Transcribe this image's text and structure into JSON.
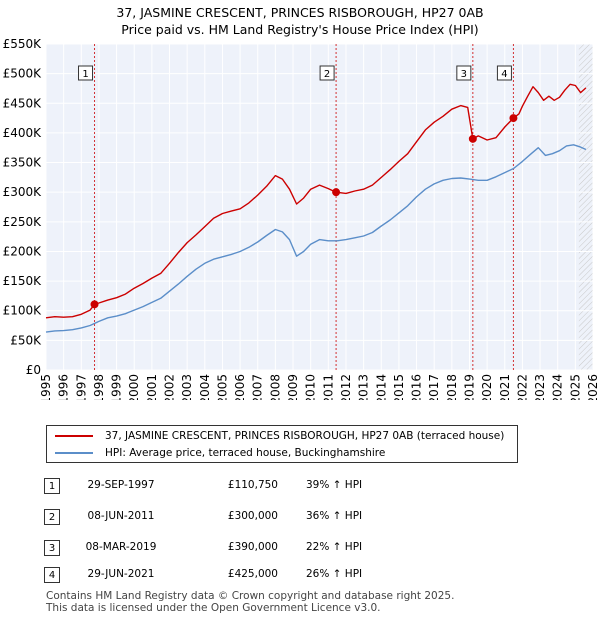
{
  "title": {
    "line1": "37, JASMINE CRESCENT, PRINCES RISBOROUGH, HP27 0AB",
    "line2": "Price paid vs. HM Land Registry's House Price Index (HPI)"
  },
  "chart_data": {
    "type": "line",
    "title": "37, JASMINE CRESCENT, PRINCES RISBOROUGH, HP27 0AB — Price paid vs. HM Land Registry's House Price Index (HPI)",
    "xlabel": "",
    "ylabel": "",
    "xlim": [
      1995,
      2026
    ],
    "ylim": [
      0,
      550000
    ],
    "x_ticks": [
      "1995",
      "1996",
      "1997",
      "1998",
      "1999",
      "2000",
      "2001",
      "2002",
      "2003",
      "2004",
      "2005",
      "2006",
      "2007",
      "2008",
      "2009",
      "2010",
      "2011",
      "2012",
      "2013",
      "2014",
      "2015",
      "2016",
      "2017",
      "2018",
      "2019",
      "2020",
      "2021",
      "2022",
      "2023",
      "2024",
      "2025",
      "2026"
    ],
    "y_ticks": [
      {
        "value": 0,
        "label": "£0"
      },
      {
        "value": 50000,
        "label": "£50K"
      },
      {
        "value": 100000,
        "label": "£100K"
      },
      {
        "value": 150000,
        "label": "£150K"
      },
      {
        "value": 200000,
        "label": "£200K"
      },
      {
        "value": 250000,
        "label": "£250K"
      },
      {
        "value": 300000,
        "label": "£300K"
      },
      {
        "value": 350000,
        "label": "£350K"
      },
      {
        "value": 400000,
        "label": "£400K"
      },
      {
        "value": 450000,
        "label": "£450K"
      },
      {
        "value": 500000,
        "label": "£500K"
      },
      {
        "value": 550000,
        "label": "£550K"
      }
    ],
    "grid": true,
    "series": [
      {
        "name": "37, JASMINE CRESCENT, PRINCES RISBOROUGH, HP27 0AB (terraced house)",
        "color": "#cc0000",
        "points": [
          [
            1995.0,
            88000
          ],
          [
            1995.5,
            90000
          ],
          [
            1996.0,
            89000
          ],
          [
            1996.5,
            90000
          ],
          [
            1997.0,
            94000
          ],
          [
            1997.5,
            101000
          ],
          [
            1997.75,
            110750
          ],
          [
            1998.0,
            113000
          ],
          [
            1998.5,
            118000
          ],
          [
            1999.0,
            122000
          ],
          [
            1999.5,
            128000
          ],
          [
            2000.0,
            138000
          ],
          [
            2000.5,
            146000
          ],
          [
            2001.0,
            155000
          ],
          [
            2001.5,
            163000
          ],
          [
            2002.0,
            180000
          ],
          [
            2002.5,
            198000
          ],
          [
            2003.0,
            215000
          ],
          [
            2003.5,
            228000
          ],
          [
            2004.0,
            242000
          ],
          [
            2004.5,
            256000
          ],
          [
            2005.0,
            264000
          ],
          [
            2005.5,
            268000
          ],
          [
            2006.0,
            272000
          ],
          [
            2006.5,
            282000
          ],
          [
            2007.0,
            295000
          ],
          [
            2007.5,
            310000
          ],
          [
            2008.0,
            328000
          ],
          [
            2008.4,
            322000
          ],
          [
            2008.8,
            305000
          ],
          [
            2009.2,
            280000
          ],
          [
            2009.6,
            290000
          ],
          [
            2010.0,
            305000
          ],
          [
            2010.5,
            312000
          ],
          [
            2011.0,
            306000
          ],
          [
            2011.44,
            300000
          ],
          [
            2012.0,
            298000
          ],
          [
            2012.5,
            302000
          ],
          [
            2013.0,
            305000
          ],
          [
            2013.5,
            312000
          ],
          [
            2014.0,
            325000
          ],
          [
            2014.5,
            338000
          ],
          [
            2015.0,
            352000
          ],
          [
            2015.5,
            365000
          ],
          [
            2016.0,
            385000
          ],
          [
            2016.5,
            405000
          ],
          [
            2017.0,
            418000
          ],
          [
            2017.5,
            428000
          ],
          [
            2018.0,
            440000
          ],
          [
            2018.5,
            446000
          ],
          [
            2018.9,
            443000
          ],
          [
            2019.19,
            390000
          ],
          [
            2019.5,
            395000
          ],
          [
            2020.0,
            388000
          ],
          [
            2020.5,
            392000
          ],
          [
            2021.0,
            410000
          ],
          [
            2021.49,
            425000
          ],
          [
            2021.8,
            432000
          ],
          [
            2022.0,
            445000
          ],
          [
            2022.3,
            462000
          ],
          [
            2022.6,
            478000
          ],
          [
            2022.9,
            468000
          ],
          [
            2023.2,
            455000
          ],
          [
            2023.5,
            462000
          ],
          [
            2023.8,
            455000
          ],
          [
            2024.1,
            460000
          ],
          [
            2024.4,
            472000
          ],
          [
            2024.7,
            482000
          ],
          [
            2025.0,
            480000
          ],
          [
            2025.3,
            468000
          ],
          [
            2025.6,
            476000
          ]
        ]
      },
      {
        "name": "HPI: Average price, terraced house, Buckinghamshire",
        "color": "#5b8ec9",
        "points": [
          [
            1995.0,
            64000
          ],
          [
            1995.5,
            66000
          ],
          [
            1996.0,
            66500
          ],
          [
            1996.5,
            68000
          ],
          [
            1997.0,
            71000
          ],
          [
            1997.5,
            75000
          ],
          [
            1998.0,
            82000
          ],
          [
            1998.5,
            88000
          ],
          [
            1999.0,
            91000
          ],
          [
            1999.5,
            95000
          ],
          [
            2000.0,
            101000
          ],
          [
            2000.5,
            107000
          ],
          [
            2001.0,
            114000
          ],
          [
            2001.5,
            121000
          ],
          [
            2002.0,
            133000
          ],
          [
            2002.5,
            145000
          ],
          [
            2003.0,
            158000
          ],
          [
            2003.5,
            170000
          ],
          [
            2004.0,
            180000
          ],
          [
            2004.5,
            187000
          ],
          [
            2005.0,
            191000
          ],
          [
            2005.5,
            195000
          ],
          [
            2006.0,
            200000
          ],
          [
            2006.5,
            207000
          ],
          [
            2007.0,
            216000
          ],
          [
            2007.5,
            227000
          ],
          [
            2008.0,
            237000
          ],
          [
            2008.4,
            233000
          ],
          [
            2008.8,
            220000
          ],
          [
            2009.2,
            192000
          ],
          [
            2009.6,
            200000
          ],
          [
            2010.0,
            212000
          ],
          [
            2010.5,
            220000
          ],
          [
            2011.0,
            218000
          ],
          [
            2011.5,
            218000
          ],
          [
            2012.0,
            220000
          ],
          [
            2012.5,
            223000
          ],
          [
            2013.0,
            226000
          ],
          [
            2013.5,
            232000
          ],
          [
            2014.0,
            243000
          ],
          [
            2014.5,
            253000
          ],
          [
            2015.0,
            265000
          ],
          [
            2015.5,
            277000
          ],
          [
            2016.0,
            292000
          ],
          [
            2016.5,
            305000
          ],
          [
            2017.0,
            314000
          ],
          [
            2017.5,
            320000
          ],
          [
            2018.0,
            323000
          ],
          [
            2018.5,
            324000
          ],
          [
            2019.0,
            322000
          ],
          [
            2019.5,
            320000
          ],
          [
            2020.0,
            320000
          ],
          [
            2020.5,
            326000
          ],
          [
            2021.0,
            333000
          ],
          [
            2021.5,
            340000
          ],
          [
            2022.0,
            352000
          ],
          [
            2022.5,
            365000
          ],
          [
            2022.9,
            375000
          ],
          [
            2023.3,
            362000
          ],
          [
            2023.7,
            365000
          ],
          [
            2024.1,
            370000
          ],
          [
            2024.5,
            378000
          ],
          [
            2024.9,
            380000
          ],
          [
            2025.3,
            376000
          ],
          [
            2025.6,
            372000
          ]
        ]
      }
    ],
    "sales": [
      {
        "id": "1",
        "x": 1997.75,
        "price": 110750
      },
      {
        "id": "2",
        "x": 2011.44,
        "price": 300000
      },
      {
        "id": "3",
        "x": 2019.19,
        "price": 390000
      },
      {
        "id": "4",
        "x": 2021.49,
        "price": 425000
      }
    ],
    "forecast_start": 2025.2
  },
  "legend": {
    "red_label": "37, JASMINE CRESCENT, PRINCES RISBOROUGH, HP27 0AB (terraced house)",
    "blue_label": "HPI: Average price, terraced house, Buckinghamshire",
    "red_color": "#cc0000",
    "blue_color": "#5b8ec9"
  },
  "table": [
    {
      "num": "1",
      "date": "29-SEP-1997",
      "price": "£110,750",
      "hpi": "39% ↑ HPI"
    },
    {
      "num": "2",
      "date": "08-JUN-2011",
      "price": "£300,000",
      "hpi": "36% ↑ HPI"
    },
    {
      "num": "3",
      "date": "08-MAR-2019",
      "price": "£390,000",
      "hpi": "22% ↑ HPI"
    },
    {
      "num": "4",
      "date": "29-JUN-2021",
      "price": "£425,000",
      "hpi": "26% ↑ HPI"
    }
  ],
  "footer": {
    "line1": "Contains HM Land Registry data © Crown copyright and database right 2025.",
    "line2": "This data is licensed under the Open Government Licence v3.0."
  }
}
